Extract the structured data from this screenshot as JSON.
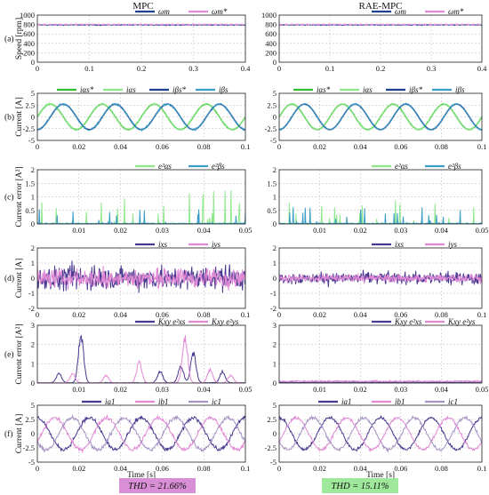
{
  "colors": {
    "navy": "#1f3f8f",
    "pink": "#e289d6",
    "green": "#32bb2d",
    "light_green": "#8ee88a",
    "teal": "#3a9ec6",
    "purple": "#4a3990",
    "lavender": "#a792c4",
    "thd_mpc_bg": "#d98fd6",
    "thd_rae_bg": "#9ee79b"
  },
  "column_titles": [
    "MPC",
    "RAE-MPC"
  ],
  "xlabel": "Time [s]",
  "thd": [
    "THD = 21.66%",
    "THD = 15.11%"
  ],
  "chart_data": [
    {
      "panel": "(a)",
      "type": "line",
      "ylabel": "Speed [rpm]",
      "ylim": [
        0,
        1000
      ],
      "yticks": [
        "0",
        "200",
        "400",
        "600",
        "800",
        "1000"
      ],
      "xlim": [
        0,
        0.4
      ],
      "xticks": [
        "0",
        "0.1",
        "0.2",
        "0.3",
        "0.4"
      ],
      "legend": [
        "ωm",
        "ωm*"
      ],
      "series": [
        {
          "name": "ωm",
          "signal": "speed",
          "level": 790,
          "noise": 14,
          "color": "navy"
        },
        {
          "name": "ωm*",
          "signal": "const",
          "level": 800,
          "color": "pink"
        }
      ]
    },
    {
      "panel": "(b)",
      "type": "line",
      "ylabel": "Current [A]",
      "ylim": [
        -5,
        5
      ],
      "yticks": [
        "-5",
        "-2.5",
        "0",
        "2.5",
        "5"
      ],
      "xlim": [
        0,
        0.1
      ],
      "xticks": [
        "0",
        "0.02",
        "0.04",
        "0.06",
        "0.08",
        "0.1"
      ],
      "legend": [
        "iαs*",
        "iαs",
        "iβs*",
        "iβs"
      ],
      "series": [
        {
          "name": "iαs*",
          "signal": "sine",
          "amplitude": 2.7,
          "frequency_hz": 40,
          "phase_deg": 0,
          "color": "green"
        },
        {
          "name": "iαs",
          "signal": "sine",
          "amplitude": 2.7,
          "frequency_hz": 40,
          "phase_deg": 0,
          "noise": 0.35,
          "color": "light_green"
        },
        {
          "name": "iβs*",
          "signal": "sine",
          "amplitude": 2.7,
          "frequency_hz": 40,
          "phase_deg": -90,
          "color": "navy"
        },
        {
          "name": "iβs",
          "signal": "sine",
          "amplitude": 2.7,
          "frequency_hz": 40,
          "phase_deg": -90,
          "noise": 0.35,
          "color": "teal"
        }
      ]
    },
    {
      "panel": "(c)",
      "type": "line",
      "ylabel": "Current error [A²]",
      "ylim": [
        0,
        2
      ],
      "yticks": [
        "0",
        "0.5",
        "1",
        "1.5",
        "2"
      ],
      "xlim": [
        0,
        0.05
      ],
      "xticks": [
        "0.01",
        "0.02",
        "0.03",
        "0.04",
        "0.05"
      ],
      "legend": [
        "e²αs",
        "e²βs"
      ],
      "series": [
        {
          "name": "e²αs",
          "signal": "spikes",
          "peak_mpc": 1.25,
          "peak_rae": 0.95,
          "color": "light_green"
        },
        {
          "name": "e²βs",
          "signal": "spikes",
          "peak_mpc": 0.55,
          "peak_rae": 0.6,
          "color": "teal"
        }
      ]
    },
    {
      "panel": "(d)",
      "type": "line",
      "ylabel": "Current [A]",
      "ylim": [
        -2,
        2
      ],
      "yticks": [
        "-2",
        "-1",
        "0",
        "1",
        "2"
      ],
      "xlim": [
        0,
        0.1
      ],
      "xticks": [
        "0",
        "0.02",
        "0.04",
        "0.06",
        "0.08",
        "0.1"
      ],
      "legend": [
        "ixs",
        "iys"
      ],
      "series": [
        {
          "name": "ixs",
          "signal": "noise",
          "amp_mpc": 1.3,
          "amp_rae": 0.65,
          "color": "purple"
        },
        {
          "name": "iys",
          "signal": "noise",
          "amp_mpc": 1.0,
          "amp_rae": 0.45,
          "color": "pink"
        }
      ]
    },
    {
      "panel": "(e)",
      "type": "line",
      "ylabel": "Current error [A²]",
      "ylim": [
        0,
        3
      ],
      "yticks": [
        "0",
        "1",
        "2",
        "3"
      ],
      "xlim": [
        0,
        0.05
      ],
      "xticks": [
        "0.01",
        "0.02",
        "0.03",
        "0.04",
        "0.05"
      ],
      "legend": [
        "Kxy e²xs",
        "Kxy e²ys"
      ],
      "series": [
        {
          "name": "Kxy e²xs",
          "signal": "bumps",
          "peaks_mpc": [
            [
              0.0105,
              2.5
            ],
            [
              0.0052,
              0.5
            ],
            [
              0.0295,
              0.6
            ],
            [
              0.0345,
              0.9
            ],
            [
              0.0375,
              1.6
            ],
            [
              0.0445,
              0.6
            ]
          ],
          "level_rae": 0.05,
          "color": "purple"
        },
        {
          "name": "Kxy e²ys",
          "signal": "bumps",
          "peaks_mpc": [
            [
              0.0355,
              2.4
            ],
            [
              0.0245,
              1.1
            ],
            [
              0.0085,
              0.5
            ],
            [
              0.0165,
              0.4
            ],
            [
              0.0415,
              0.7
            ],
            [
              0.0465,
              0.4
            ]
          ],
          "level_rae": 0.12,
          "color": "pink"
        }
      ]
    },
    {
      "panel": "(f)",
      "type": "line",
      "ylabel": "Current [A]",
      "ylim": [
        -5,
        5
      ],
      "yticks": [
        "-5",
        "-2.5",
        "0",
        "2.5",
        "5"
      ],
      "xlim": [
        0,
        0.1
      ],
      "xticks": [
        "0",
        "0.02",
        "0.04",
        "0.06",
        "0.08",
        "0.1"
      ],
      "legend": [
        "ia1",
        "ib1",
        "ic1"
      ],
      "series": [
        {
          "name": "ia1",
          "signal": "sine",
          "amplitude": 2.8,
          "frequency_hz": 40,
          "phase_deg": 90,
          "noise": 0.5,
          "color": "purple"
        },
        {
          "name": "ib1",
          "signal": "sine",
          "amplitude": 2.8,
          "frequency_hz": 40,
          "phase_deg": -30,
          "noise": 0.5,
          "color": "pink"
        },
        {
          "name": "ic1",
          "signal": "sine",
          "amplitude": 2.8,
          "frequency_hz": 40,
          "phase_deg": 210,
          "noise": 0.5,
          "color": "lavender"
        }
      ]
    }
  ]
}
